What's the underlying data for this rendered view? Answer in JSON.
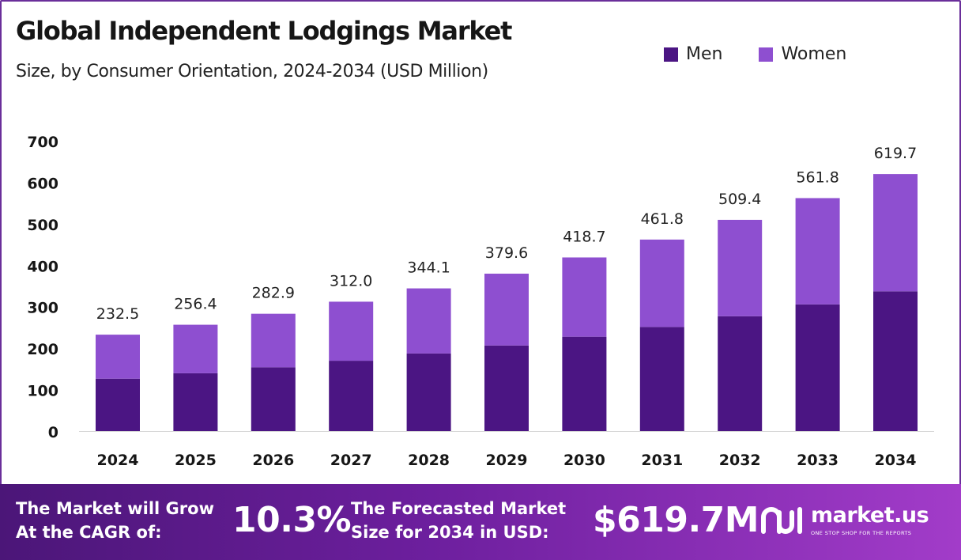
{
  "title": "Global Independent Lodgings Market",
  "subtitle": "Size, by Consumer Orientation, 2024-2034 (USD Million)",
  "legend": [
    {
      "label": "Men",
      "color": "#4b1583"
    },
    {
      "label": "Women",
      "color": "#8e4fd0"
    }
  ],
  "chart_data": {
    "type": "bar",
    "stacked": true,
    "categories": [
      "2024",
      "2025",
      "2026",
      "2027",
      "2028",
      "2029",
      "2030",
      "2031",
      "2032",
      "2033",
      "2034"
    ],
    "series": [
      {
        "name": "Men",
        "color": "#4b1583",
        "values": [
          126.4,
          139.4,
          153.8,
          169.6,
          187.1,
          206.4,
          227.6,
          251.1,
          276.9,
          305.5,
          337.0
        ]
      },
      {
        "name": "Women",
        "color": "#8e4fd0",
        "values": [
          106.1,
          117.0,
          129.1,
          142.4,
          157.0,
          173.2,
          191.1,
          210.7,
          232.5,
          256.3,
          282.7
        ]
      }
    ],
    "total_labels": [
      "232.5",
      "256.4",
      "282.9",
      "312.0",
      "344.1",
      "379.6",
      "418.7",
      "461.8",
      "509.4",
      "561.8",
      "619.7"
    ],
    "yticks": [
      "0",
      "100",
      "200",
      "300",
      "400",
      "500",
      "600",
      "700"
    ],
    "ylim": [
      0,
      700
    ],
    "grid": false,
    "legend_position": "top-right"
  },
  "footer": {
    "cagr_line1": "The Market will Grow",
    "cagr_line2": "At the CAGR of:",
    "cagr_value": "10.3%",
    "forecast_line1": "The Forecasted Market",
    "forecast_line2": "Size for 2034 in USD:",
    "forecast_value": "$619.7M",
    "brand": "market.us",
    "tagline": "ONE STOP SHOP FOR THE REPORTS"
  }
}
